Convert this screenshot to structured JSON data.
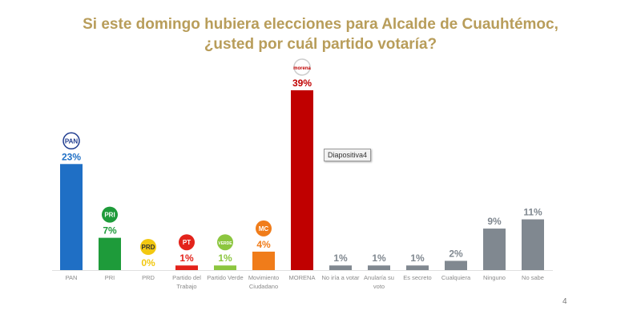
{
  "title_line1": "Si este domingo hubiera elecciones para Alcalde de Cuauhtémoc,",
  "title_line2": "¿usted por cuál partido votaría?",
  "tooltip": "Diapositiva4",
  "page_number": "4",
  "chart_data": {
    "type": "bar",
    "title": "Si este domingo hubiera elecciones para Alcalde de Cuauhtémoc, ¿usted por cuál partido votaría?",
    "categories": [
      "PAN",
      "PRI",
      "PRD",
      "Partido del Trabajo",
      "Partido Verde",
      "Movimiento Ciudadano",
      "MORENA",
      "No iría a votar",
      "Anularía su voto",
      "Es secreto",
      "Cualquiera",
      "Ninguno",
      "No sabe"
    ],
    "values": [
      23,
      7,
      0,
      1,
      1,
      4,
      39,
      1,
      1,
      1,
      2,
      9,
      11
    ],
    "data_labels": [
      "23%",
      "7%",
      "0%",
      "1%",
      "1%",
      "4%",
      "39%",
      "1%",
      "1%",
      "1%",
      "2%",
      "9%",
      "11%"
    ],
    "colors": [
      "#1F6FC5",
      "#1E9B3A",
      "#F2C811",
      "#E3231B",
      "#8CC63F",
      "#F07C1A",
      "#C00000",
      "#808890",
      "#808890",
      "#808890",
      "#808890",
      "#808890",
      "#808890"
    ],
    "label_colors": [
      "#1F6FC5",
      "#1E9B3A",
      "#F2C811",
      "#E3231B",
      "#8CC63F",
      "#F07C1A",
      "#C00000",
      "#808890",
      "#808890",
      "#808890",
      "#808890",
      "#808890",
      "#808890"
    ],
    "logos": [
      "PAN",
      "PRI",
      "PRD",
      "PT",
      "VERDE",
      "MC",
      "morena",
      "",
      "",
      "",
      "",
      "",
      ""
    ],
    "ylim": [
      0,
      40
    ],
    "grid": false,
    "legend": "none"
  }
}
